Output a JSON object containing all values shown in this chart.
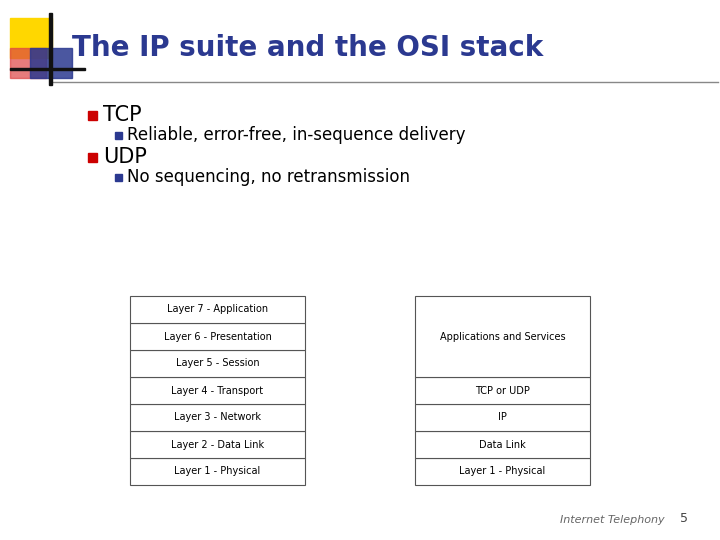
{
  "title": "The IP suite and the OSI stack",
  "title_color": "#2B3990",
  "background_color": "#FFFFFF",
  "bullet1": "TCP",
  "bullet1_sub": "Reliable, error-free, in-sequence delivery",
  "bullet2": "UDP",
  "bullet2_sub": "No sequencing, no retransmission",
  "bullet_color_main": "#CC0000",
  "bullet_color_sub": "#2B3990",
  "text_color": "#000000",
  "osi_layers": [
    "Layer 7 - Application",
    "Layer 6 - Presentation",
    "Layer 5 - Session",
    "Layer 4 - Transport",
    "Layer 3 - Network",
    "Layer 2 - Data Link",
    "Layer 1 - Physical"
  ],
  "ip_layers": [
    "Applications and Services",
    "TCP or UDP",
    "IP",
    "Data Link",
    "Layer 1 - Physical"
  ],
  "ip_layer_heights": [
    3,
    1,
    1,
    1,
    1
  ],
  "footer_text": "Internet Telephony",
  "footer_page": "5",
  "header_line_color": "#888888",
  "box_border_color": "#555555",
  "box_fill_color": "#FFFFFF",
  "logo_yellow": "#FFD700",
  "logo_red": "#DD4444",
  "logo_blue": "#2B3990",
  "logo_black": "#111111",
  "title_fontsize": 20,
  "bullet_main_fontsize": 15,
  "bullet_sub_fontsize": 12,
  "layer_fontsize": 7,
  "footer_fontsize": 8
}
